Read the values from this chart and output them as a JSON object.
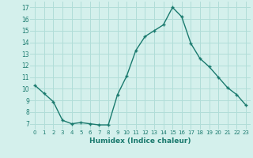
{
  "x": [
    0,
    1,
    2,
    3,
    4,
    5,
    6,
    7,
    8,
    9,
    10,
    11,
    12,
    13,
    14,
    15,
    16,
    17,
    18,
    19,
    20,
    21,
    22,
    23
  ],
  "y": [
    10.3,
    9.6,
    8.9,
    7.3,
    7.0,
    7.1,
    7.0,
    6.9,
    6.9,
    9.5,
    11.1,
    13.3,
    14.5,
    15.0,
    15.5,
    17.0,
    16.2,
    13.9,
    12.6,
    11.9,
    11.0,
    10.1,
    9.5,
    8.6
  ],
  "line_color": "#1a7a6e",
  "marker": "+",
  "marker_size": 3,
  "marker_linewidth": 1.0,
  "xlabel": "Humidex (Indice chaleur)",
  "xlim": [
    -0.5,
    23.5
  ],
  "ylim": [
    6.5,
    17.5
  ],
  "yticks": [
    7,
    8,
    9,
    10,
    11,
    12,
    13,
    14,
    15,
    16,
    17
  ],
  "xticks": [
    0,
    1,
    2,
    3,
    4,
    5,
    6,
    7,
    8,
    9,
    10,
    11,
    12,
    13,
    14,
    15,
    16,
    17,
    18,
    19,
    20,
    21,
    22,
    23
  ],
  "xtick_labels": [
    "0",
    "1",
    "2",
    "3",
    "4",
    "5",
    "6",
    "7",
    "8",
    "9",
    "10",
    "11",
    "12",
    "13",
    "14",
    "15",
    "16",
    "17",
    "18",
    "19",
    "20",
    "21",
    "22",
    "23"
  ],
  "grid_color": "#b0ddd8",
  "background_color": "#d4f0ec",
  "line_width": 1.0
}
